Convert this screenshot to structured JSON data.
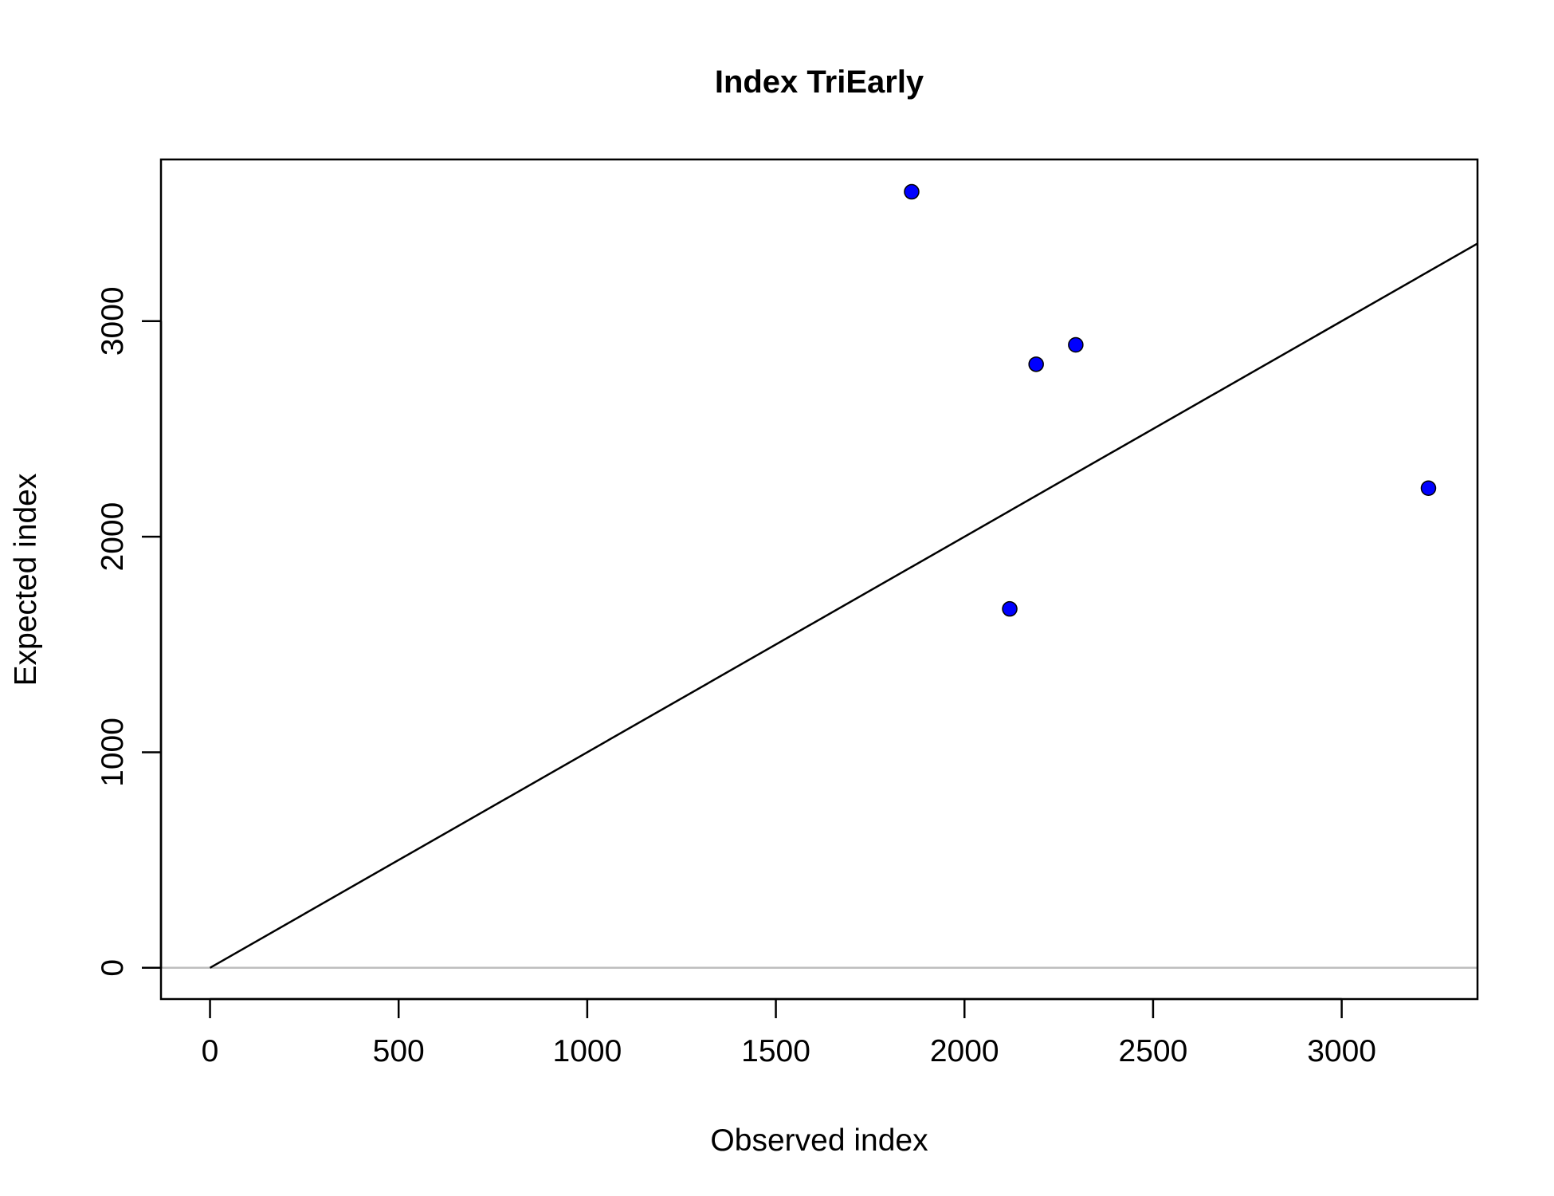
{
  "chart_data": {
    "type": "scatter",
    "title": "Index TriEarly",
    "xlabel": "Observed index",
    "ylabel": "Expected index",
    "xlim": [
      -130,
      3360
    ],
    "ylim": [
      -145,
      3750
    ],
    "x_ticks": [
      0,
      500,
      1000,
      1500,
      2000,
      2500,
      3000
    ],
    "y_ticks": [
      0,
      1000,
      2000,
      3000
    ],
    "x_tick_labels": [
      "0",
      "500",
      "1000",
      "1500",
      "2000",
      "2500",
      "3000"
    ],
    "y_tick_labels": [
      "0",
      "1000",
      "2000",
      "3000"
    ],
    "points": [
      {
        "x": 1860,
        "y": 3600
      },
      {
        "x": 2190,
        "y": 2800
      },
      {
        "x": 2295,
        "y": 2890
      },
      {
        "x": 2120,
        "y": 1665
      },
      {
        "x": 3230,
        "y": 2225
      }
    ],
    "reference_line": {
      "type": "identity",
      "from": 0
    },
    "hline": {
      "y": 0,
      "color": "#bebebe"
    },
    "point_color": "#0000ff",
    "grid": false
  }
}
